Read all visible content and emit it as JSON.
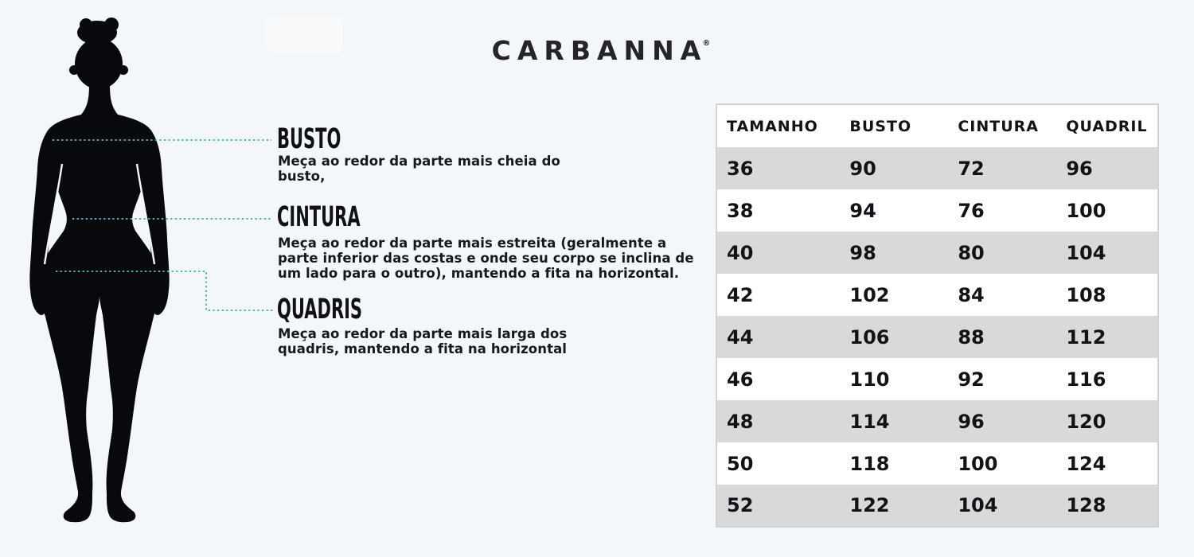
{
  "brand": {
    "name": "CARBANNA",
    "registered_mark": "®"
  },
  "colors": {
    "bg": "#f3f7f9",
    "silhouette": "#07090d",
    "accent": "#45b4c8",
    "text": "#17181b",
    "row-gray": "#d9d9d9",
    "row-white": "#ffffff",
    "table-border": "#d2d3d4",
    "logo": "#24242a"
  },
  "measure_guide": {
    "sections": [
      {
        "id": "busto",
        "label": "BUSTO",
        "description": [
          "Meça ao redor da parte mais cheia do",
          "busto,"
        ]
      },
      {
        "id": "cintura",
        "label": "CINTURA",
        "description": [
          "Meça ao redor da parte mais estreita (geralmente a",
          "parte inferior das costas e onde seu corpo se inclina de",
          "um lado para o outro), mantendo a fita na horizontal."
        ]
      },
      {
        "id": "quadris",
        "label": "QUADRIS",
        "description": [
          "Meça ao redor da parte mais larga dos",
          "quadris, mantendo a fita na horizontal"
        ]
      }
    ]
  },
  "table": {
    "headers": [
      "TAMANHO",
      "BUSTO",
      "CINTURA",
      "QUADRIL"
    ],
    "rows": [
      [
        36,
        90,
        72,
        96
      ],
      [
        38,
        94,
        76,
        100
      ],
      [
        40,
        98,
        80,
        104
      ],
      [
        42,
        102,
        84,
        108
      ],
      [
        44,
        106,
        88,
        112
      ],
      [
        46,
        110,
        92,
        116
      ],
      [
        48,
        114,
        96,
        120
      ],
      [
        50,
        118,
        100,
        124
      ],
      [
        52,
        122,
        104,
        128
      ]
    ]
  },
  "figure": {
    "icon": "female-body-silhouette"
  }
}
